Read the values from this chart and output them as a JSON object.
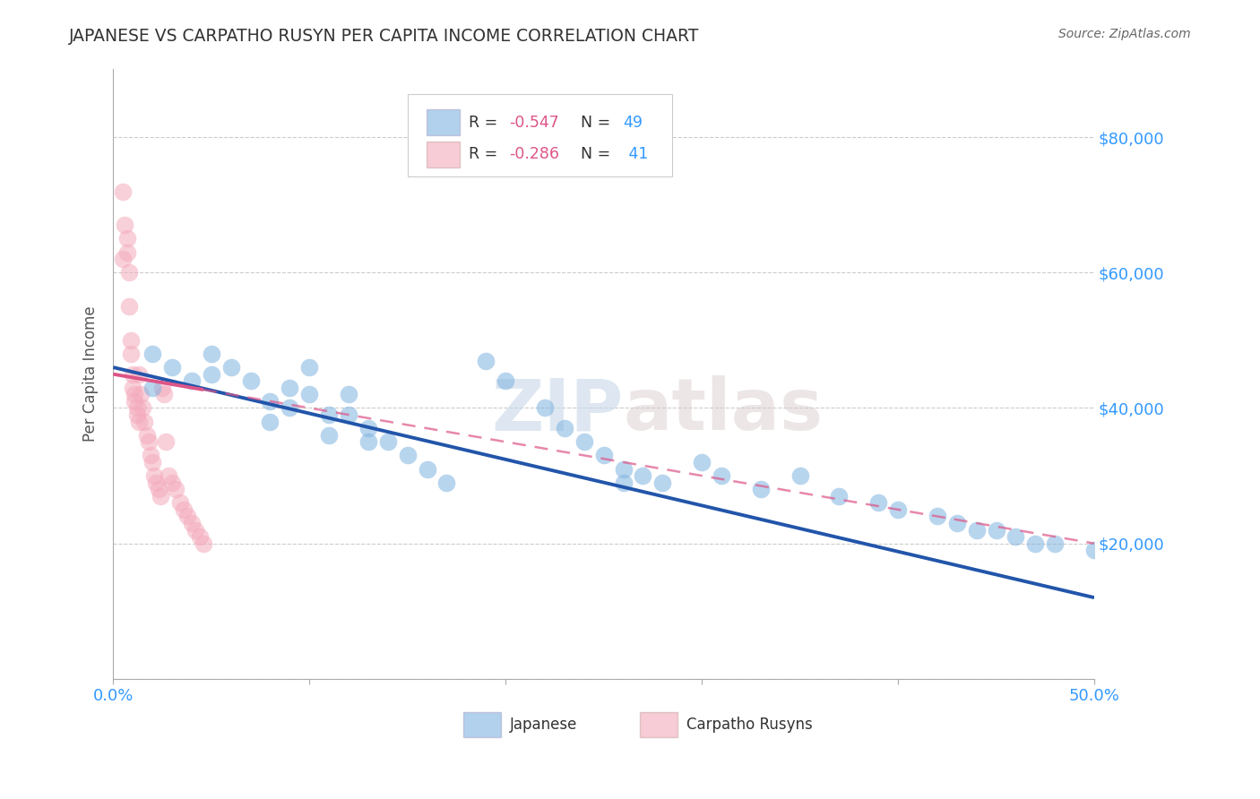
{
  "title": "JAPANESE VS CARPATHO RUSYN PER CAPITA INCOME CORRELATION CHART",
  "source": "Source: ZipAtlas.com",
  "ylabel": "Per Capita Income",
  "xlim": [
    0.0,
    0.5
  ],
  "ylim": [
    0,
    90000
  ],
  "yticks": [
    0,
    20000,
    40000,
    60000,
    80000
  ],
  "ytick_labels": [
    "",
    "$20,000",
    "$40,000",
    "$60,000",
    "$80,000"
  ],
  "legend_r1": "-0.547",
  "legend_n1": "49",
  "legend_r2": "-0.286",
  "legend_n2": "41",
  "watermark_zip": "ZIP",
  "watermark_atlas": "atlas",
  "background_color": "#ffffff",
  "grid_color": "#cccccc",
  "blue_color": "#7FB3E0",
  "pink_color": "#F4AABC",
  "blue_line_color": "#2255AA",
  "pink_line_color": "#DD5588",
  "title_color": "#333333",
  "axis_label_color": "#555555",
  "tick_color": "#3399FF",
  "japanese_x": [
    0.02,
    0.02,
    0.03,
    0.04,
    0.05,
    0.05,
    0.06,
    0.07,
    0.08,
    0.08,
    0.09,
    0.09,
    0.1,
    0.1,
    0.11,
    0.11,
    0.12,
    0.12,
    0.13,
    0.13,
    0.14,
    0.15,
    0.16,
    0.17,
    0.19,
    0.2,
    0.22,
    0.23,
    0.24,
    0.25,
    0.26,
    0.26,
    0.27,
    0.28,
    0.3,
    0.31,
    0.33,
    0.35,
    0.37,
    0.39,
    0.4,
    0.42,
    0.43,
    0.44,
    0.45,
    0.46,
    0.47,
    0.48,
    0.5
  ],
  "japanese_y": [
    48000,
    43000,
    46000,
    44000,
    48000,
    45000,
    46000,
    44000,
    41000,
    38000,
    43000,
    40000,
    46000,
    42000,
    39000,
    36000,
    42000,
    39000,
    37000,
    35000,
    35000,
    33000,
    31000,
    29000,
    47000,
    44000,
    40000,
    37000,
    35000,
    33000,
    31000,
    29000,
    30000,
    29000,
    32000,
    30000,
    28000,
    30000,
    27000,
    26000,
    25000,
    24000,
    23000,
    22000,
    22000,
    21000,
    20000,
    20000,
    19000
  ],
  "rusyn_x": [
    0.005,
    0.005,
    0.006,
    0.007,
    0.007,
    0.008,
    0.008,
    0.009,
    0.009,
    0.01,
    0.01,
    0.011,
    0.011,
    0.012,
    0.012,
    0.013,
    0.013,
    0.014,
    0.015,
    0.016,
    0.017,
    0.018,
    0.019,
    0.02,
    0.021,
    0.022,
    0.023,
    0.024,
    0.025,
    0.026,
    0.027,
    0.028,
    0.03,
    0.032,
    0.034,
    0.036,
    0.038,
    0.04,
    0.042,
    0.044,
    0.046
  ],
  "rusyn_y": [
    72000,
    62000,
    67000,
    65000,
    63000,
    60000,
    55000,
    50000,
    48000,
    45000,
    43000,
    42000,
    41000,
    40000,
    39000,
    38000,
    45000,
    42000,
    40000,
    38000,
    36000,
    35000,
    33000,
    32000,
    30000,
    29000,
    28000,
    27000,
    43000,
    42000,
    35000,
    30000,
    29000,
    28000,
    26000,
    25000,
    24000,
    23000,
    22000,
    21000,
    20000
  ],
  "blue_line_x0": 0.0,
  "blue_line_y0": 46000,
  "blue_line_x1": 0.5,
  "blue_line_y1": 12000,
  "pink_line_x0": 0.0,
  "pink_line_y0": 45000,
  "pink_line_x1": 0.5,
  "pink_line_y1": 20000
}
